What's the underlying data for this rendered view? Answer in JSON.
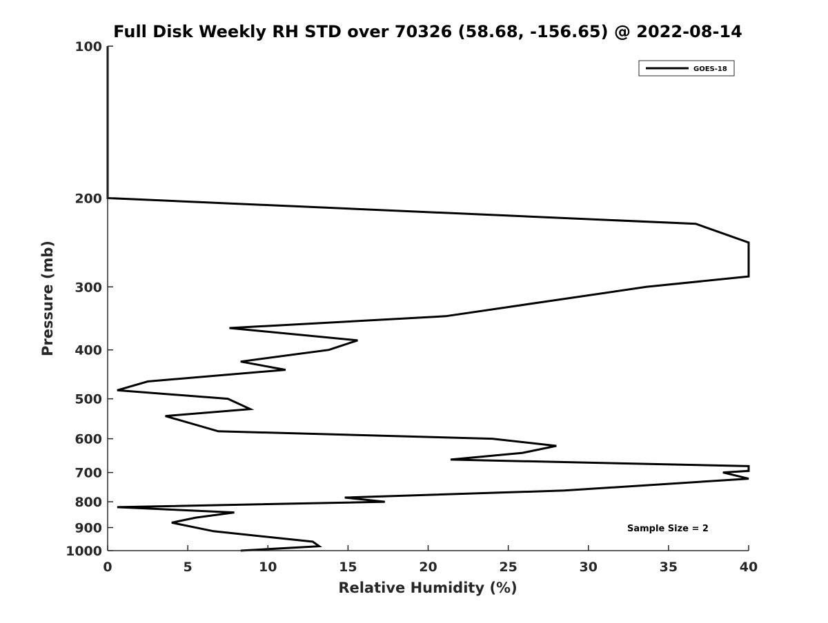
{
  "chart_data": {
    "type": "line",
    "title": "Full Disk Weekly RH STD over 70326 (58.68, -156.65) @ 2022-08-14",
    "xlabel": "Relative Humidity (%)",
    "ylabel": "Pressure (mb)",
    "xlim": [
      0,
      40
    ],
    "ylim": [
      100,
      1000
    ],
    "yscale": "log",
    "y_reversed": true,
    "grid": false,
    "legend_position": "top-right",
    "x_ticks": [
      0,
      5,
      10,
      15,
      20,
      25,
      30,
      35,
      40
    ],
    "y_ticks": [
      100,
      200,
      300,
      400,
      500,
      600,
      700,
      800,
      900,
      1000
    ],
    "series": [
      {
        "name": "GOES-18",
        "color": "#000000",
        "points": [
          [
            0,
            100
          ],
          [
            0,
            120
          ],
          [
            0,
            150
          ],
          [
            0,
            180
          ],
          [
            0,
            200
          ],
          [
            36.7,
            225
          ],
          [
            40,
            245
          ],
          [
            40,
            286
          ],
          [
            33.6,
            300
          ],
          [
            21.1,
            343
          ],
          [
            7.6,
            362
          ],
          [
            15.6,
            383
          ],
          [
            13.8,
            400
          ],
          [
            8.3,
            422
          ],
          [
            11.1,
            438
          ],
          [
            2.5,
            462
          ],
          [
            0.6,
            481
          ],
          [
            7.5,
            500
          ],
          [
            8.9,
            524
          ],
          [
            3.6,
            541
          ],
          [
            6.9,
            580
          ],
          [
            24,
            600
          ],
          [
            28,
            620
          ],
          [
            25.9,
            640
          ],
          [
            21.4,
            660
          ],
          [
            40,
            680
          ],
          [
            40,
            695
          ],
          [
            38.4,
            700
          ],
          [
            40,
            720
          ],
          [
            28.5,
            760
          ],
          [
            14.8,
            785
          ],
          [
            17.3,
            800
          ],
          [
            0.6,
            820
          ],
          [
            7.9,
            840
          ],
          [
            5.5,
            860
          ],
          [
            4.0,
            880
          ],
          [
            6.6,
            915
          ],
          [
            12.8,
            960
          ],
          [
            13.2,
            980
          ],
          [
            8.3,
            1000
          ]
        ]
      }
    ],
    "annotations": [
      "Sample Size = 2"
    ]
  }
}
